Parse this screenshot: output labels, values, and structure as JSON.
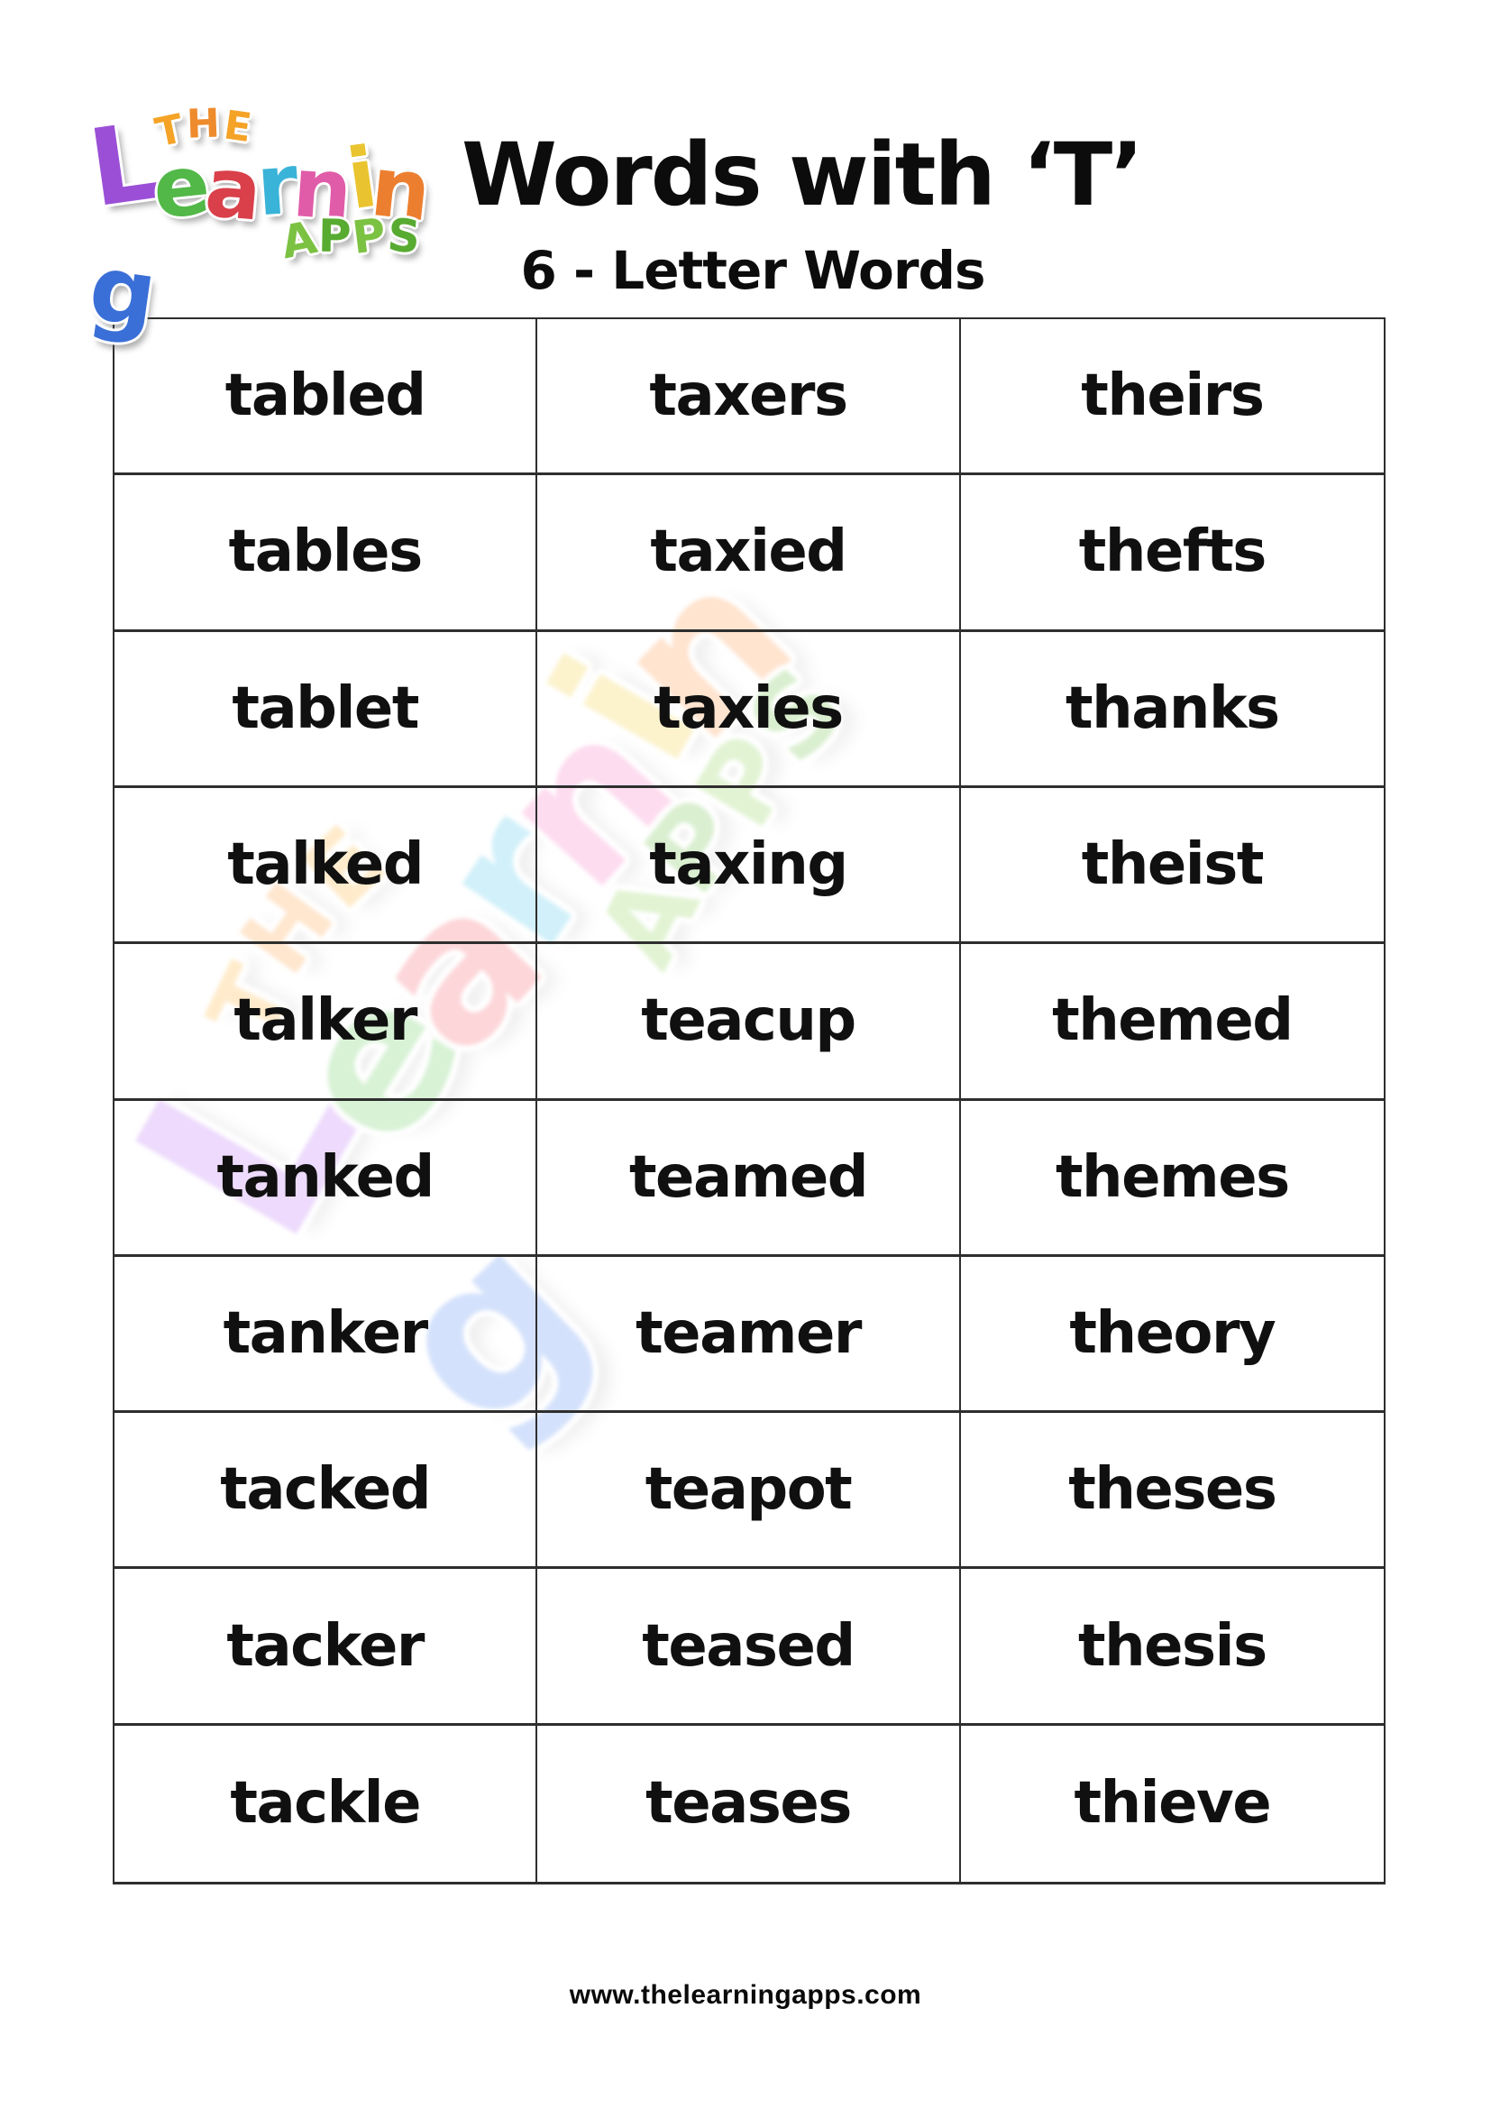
{
  "page": {
    "title": "Words with ‘T’",
    "subtitle": "6 - Letter Words",
    "footer_url": "www.thelearningapps.com"
  },
  "logo": {
    "the": {
      "letters": [
        {
          "ch": "T",
          "color": "#f5a327"
        },
        {
          "ch": "H",
          "color": "#ee8b2c"
        },
        {
          "ch": "E",
          "color": "#f5a327"
        }
      ]
    },
    "learning": {
      "letters": [
        {
          "ch": "L",
          "color": "#9b4fd6"
        },
        {
          "ch": "e",
          "color": "#52b848"
        },
        {
          "ch": "a",
          "color": "#d9404a"
        },
        {
          "ch": "r",
          "color": "#3ab3d8"
        },
        {
          "ch": "n",
          "color": "#e05ca8"
        },
        {
          "ch": "i",
          "color": "#eac430"
        },
        {
          "ch": "n",
          "color": "#ec7f2f"
        },
        {
          "ch": "g",
          "color": "#3a6fd8"
        }
      ]
    },
    "apps": {
      "letters": [
        {
          "ch": "A",
          "color": "#7cc242"
        },
        {
          "ch": "P",
          "color": "#58ab31"
        },
        {
          "ch": "P",
          "color": "#7cc242"
        },
        {
          "ch": "S",
          "color": "#58ab31"
        }
      ]
    }
  },
  "words": [
    [
      "tabled",
      "taxers",
      "theirs"
    ],
    [
      "tables",
      "taxied",
      "thefts"
    ],
    [
      "tablet",
      "taxies",
      "thanks"
    ],
    [
      "talked",
      "taxing",
      "theist"
    ],
    [
      "talker",
      "teacup",
      "themed"
    ],
    [
      "tanked",
      "teamed",
      "themes"
    ],
    [
      "tanker",
      "teamer",
      "theory"
    ],
    [
      "tacked",
      "teapot",
      "theses"
    ],
    [
      "tacker",
      "teased",
      "thesis"
    ],
    [
      "tackle",
      "teases",
      "thieve"
    ]
  ],
  "colors": {
    "border": "#2e2e2e",
    "text": "#101010"
  }
}
